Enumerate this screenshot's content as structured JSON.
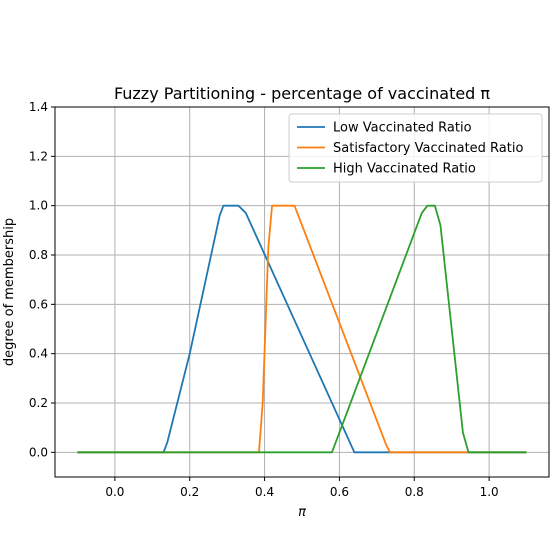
{
  "chart_data": {
    "type": "line",
    "title": "Fuzzy Partitioning - percentage of vaccinated π",
    "xlabel": "π",
    "ylabel": "degree of membership",
    "xlim": [
      -0.16,
      1.16
    ],
    "ylim": [
      -0.1,
      1.4
    ],
    "xticks": [
      0.0,
      0.2,
      0.4,
      0.6,
      0.8,
      1.0
    ],
    "xtick_labels": [
      "0.0",
      "0.2",
      "0.4",
      "0.6",
      "0.8",
      "1.0"
    ],
    "yticks": [
      0.0,
      0.2,
      0.4,
      0.6,
      0.8,
      1.0,
      1.2,
      1.4
    ],
    "ytick_labels": [
      "0.0",
      "0.2",
      "0.4",
      "0.6",
      "0.8",
      "1.0",
      "1.2",
      "1.4"
    ],
    "grid": true,
    "legend_position": "top-right",
    "series": [
      {
        "name": "Low Vaccinated Ratio",
        "color": "#1f77b4",
        "points": [
          [
            -0.1,
            0.0
          ],
          [
            0.13,
            0.0
          ],
          [
            0.14,
            0.04
          ],
          [
            0.2,
            0.4
          ],
          [
            0.28,
            0.96
          ],
          [
            0.29,
            1.0
          ],
          [
            0.33,
            1.0
          ],
          [
            0.35,
            0.97
          ],
          [
            0.64,
            0.0
          ],
          [
            1.1,
            0.0
          ]
        ]
      },
      {
        "name": "Satisfactory Vaccinated Ratio",
        "color": "#ff7f0e",
        "points": [
          [
            -0.1,
            0.0
          ],
          [
            0.385,
            0.0
          ],
          [
            0.395,
            0.2
          ],
          [
            0.41,
            0.83
          ],
          [
            0.42,
            1.0
          ],
          [
            0.48,
            1.0
          ],
          [
            0.725,
            0.03
          ],
          [
            0.735,
            0.0
          ],
          [
            1.1,
            0.0
          ]
        ]
      },
      {
        "name": "High Vaccinated Ratio",
        "color": "#2ca02c",
        "points": [
          [
            -0.1,
            0.0
          ],
          [
            0.58,
            0.0
          ],
          [
            0.6,
            0.08
          ],
          [
            0.82,
            0.97
          ],
          [
            0.835,
            1.0
          ],
          [
            0.855,
            1.0
          ],
          [
            0.87,
            0.92
          ],
          [
            0.93,
            0.08
          ],
          [
            0.945,
            0.0
          ],
          [
            1.1,
            0.0
          ]
        ]
      }
    ]
  }
}
